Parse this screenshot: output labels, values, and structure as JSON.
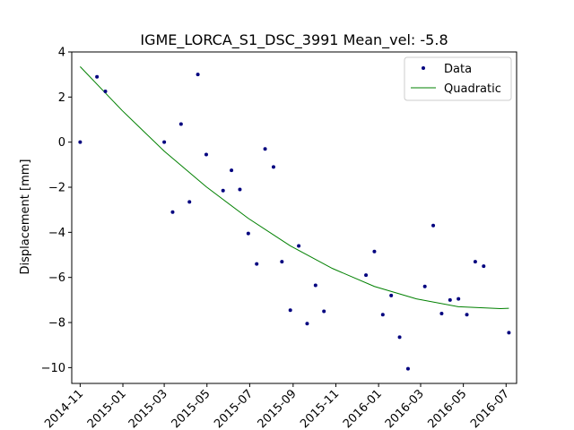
{
  "chart_data": {
    "type": "scatter",
    "title": "IGME_LORCA_S1_DSC_3991     Mean_vel: -5.8",
    "xlabel": "",
    "ylabel": "Displacement [mm]",
    "xlim": [
      "2014-10-20",
      "2016-07-16"
    ],
    "ylim": [
      -10.7,
      4.0
    ],
    "y_ticks": [
      4,
      2,
      0,
      -2,
      -4,
      -6,
      -8,
      -10
    ],
    "y_tick_labels": [
      "4",
      "2",
      "0",
      "−2",
      "−4",
      "−6",
      "−8",
      "−10"
    ],
    "x_ticks": [
      "2014-11-01",
      "2015-01-01",
      "2015-03-01",
      "2015-05-01",
      "2015-07-01",
      "2015-09-01",
      "2015-11-01",
      "2016-01-01",
      "2016-03-01",
      "2016-05-01",
      "2016-07-01"
    ],
    "x_tick_labels": [
      "2014-11",
      "2015-01",
      "2015-03",
      "2015-05",
      "2015-07",
      "2015-09",
      "2015-11",
      "2016-01",
      "2016-03",
      "2016-05",
      "2016-07"
    ],
    "grid": false,
    "legend_position": "upper right",
    "colors": {
      "data": "#00007f",
      "quadratic": "#008000"
    },
    "series": [
      {
        "name": "Data",
        "style": "points",
        "x": [
          "2014-11-01",
          "2014-11-25",
          "2014-12-07",
          "2015-03-01",
          "2015-03-13",
          "2015-03-25",
          "2015-04-06",
          "2015-04-18",
          "2015-04-30",
          "2015-05-24",
          "2015-06-05",
          "2015-06-17",
          "2015-06-29",
          "2015-07-11",
          "2015-07-23",
          "2015-08-04",
          "2015-08-16",
          "2015-08-28",
          "2015-09-09",
          "2015-09-21",
          "2015-10-03",
          "2015-10-15",
          "2015-12-14",
          "2015-12-26",
          "2016-01-07",
          "2016-01-19",
          "2016-01-31",
          "2016-02-12",
          "2016-03-07",
          "2016-03-19",
          "2016-03-31",
          "2016-04-12",
          "2016-04-24",
          "2016-05-06",
          "2016-05-18",
          "2016-05-30",
          "2016-07-05"
        ],
        "y": [
          0.0,
          2.9,
          2.25,
          0.0,
          -3.1,
          0.8,
          -2.65,
          3.0,
          -0.55,
          -2.15,
          -1.25,
          -2.1,
          -4.05,
          -5.4,
          -0.3,
          -1.1,
          -5.3,
          -7.45,
          -4.6,
          -8.05,
          -6.35,
          -7.5,
          -5.9,
          -4.85,
          -7.65,
          -6.8,
          -8.65,
          -10.05,
          -6.4,
          -3.7,
          -7.6,
          -7.0,
          -6.95,
          -7.65,
          -5.3,
          -5.5,
          -8.45
        ]
      },
      {
        "name": "Quadratic",
        "style": "line",
        "x": [
          "2014-11-01",
          "2014-12-31",
          "2015-03-01",
          "2015-04-30",
          "2015-06-29",
          "2015-08-28",
          "2015-10-27",
          "2015-12-26",
          "2016-02-24",
          "2016-04-24",
          "2016-06-23",
          "2016-07-05"
        ],
        "y": [
          3.35,
          1.4,
          -0.4,
          -1.98,
          -3.38,
          -4.6,
          -5.6,
          -6.4,
          -6.95,
          -7.3,
          -7.38,
          -7.37
        ]
      }
    ]
  }
}
